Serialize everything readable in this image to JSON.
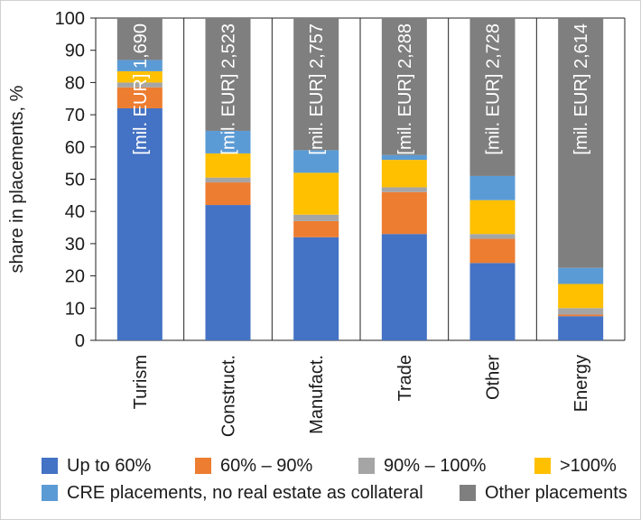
{
  "chart_data": {
    "type": "bar",
    "stacked": true,
    "ylabel": "share in placements, %",
    "xlabel": "",
    "ylim": [
      0,
      100
    ],
    "yticks": [
      0,
      10,
      20,
      30,
      40,
      50,
      60,
      70,
      80,
      90,
      100
    ],
    "grid": {
      "horizontal": false,
      "vertical_category_separators": true
    },
    "categories": [
      "Turism",
      "Construct.",
      "Manufact.",
      "Trade",
      "Other",
      "Energy"
    ],
    "bar_labels": [
      "[mil. EUR] 1,690",
      "[mil. EUR] 2,523",
      "[mil. EUR] 2,757",
      "[mil. EUR] 2,288",
      "[mil. EUR] 2,728",
      "[mil. EUR] 2,614"
    ],
    "series": [
      {
        "name": "Up to 60%",
        "color": "#4472C4",
        "values": [
          72,
          42,
          32,
          33,
          24,
          7.5
        ]
      },
      {
        "name": "60% – 90%",
        "color": "#ED7D31",
        "values": [
          6.5,
          7,
          5,
          13,
          7.5,
          0.5
        ]
      },
      {
        "name": "90% – 100%",
        "color": "#A5A5A5",
        "values": [
          1.5,
          1.5,
          2,
          1.5,
          1.5,
          2
        ]
      },
      {
        "name": ">100%",
        "color": "#FFC000",
        "values": [
          3.5,
          7.5,
          13,
          8.5,
          10.5,
          7.5
        ]
      },
      {
        "name": "CRE placements, no real estate as collateral",
        "color": "#5B9BD5",
        "values": [
          3.5,
          7,
          7,
          1.5,
          7.5,
          5
        ]
      },
      {
        "name": "Other placements",
        "color": "#7F7F7F",
        "values": [
          13,
          35,
          41,
          42.5,
          49,
          77.5
        ]
      }
    ],
    "legend_position": "bottom"
  }
}
